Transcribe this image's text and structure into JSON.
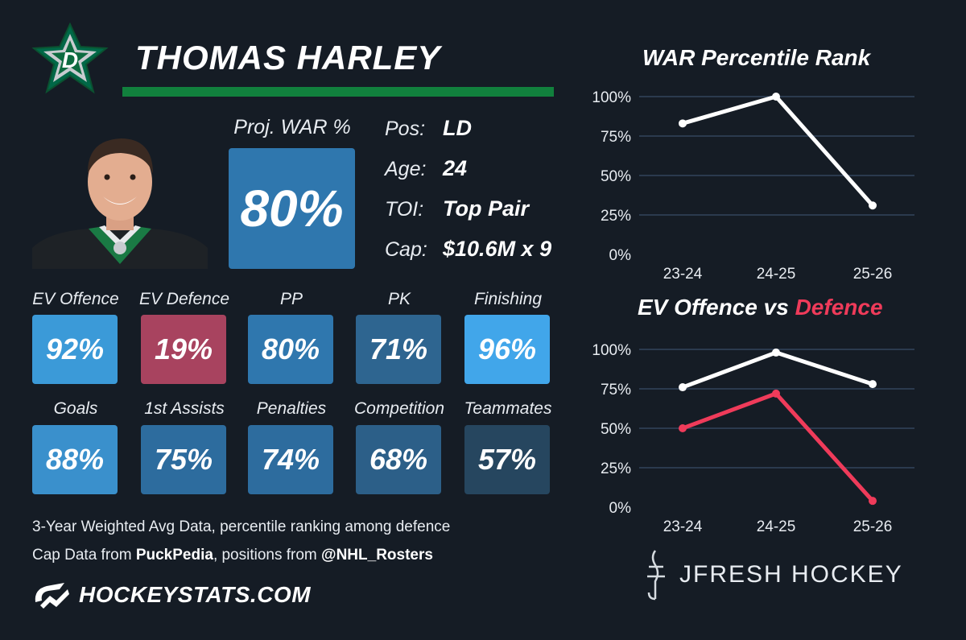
{
  "player": {
    "name": "THOMAS HARLEY",
    "proj_war_label": "Proj. WAR %",
    "proj_war_value": "80%",
    "team_logo": "dallas-stars-star-logo"
  },
  "info": [
    {
      "label": "Pos:",
      "value": "LD"
    },
    {
      "label": "Age:",
      "value": "24"
    },
    {
      "label": "TOI:",
      "value": "Top Pair"
    },
    {
      "label": "Cap:",
      "value": "$10.6M x 9"
    }
  ],
  "metrics": [
    {
      "label": "EV Offence",
      "value": "92%",
      "color": "#3b9ad8"
    },
    {
      "label": "EV Defence",
      "value": "19%",
      "color": "#a8435f"
    },
    {
      "label": "PP",
      "value": "80%",
      "color": "#2f77ae"
    },
    {
      "label": "PK",
      "value": "71%",
      "color": "#2e6590"
    },
    {
      "label": "Finishing",
      "value": "96%",
      "color": "#41a6ea"
    },
    {
      "label": "Goals",
      "value": "88%",
      "color": "#3a90cc"
    },
    {
      "label": "1st Assists",
      "value": "75%",
      "color": "#2d6c9e"
    },
    {
      "label": "Penalties",
      "value": "74%",
      "color": "#2d6c9e"
    },
    {
      "label": "Competition",
      "value": "68%",
      "color": "#2c5f88"
    },
    {
      "label": "Teammates",
      "value": "57%",
      "color": "#26465f"
    }
  ],
  "footnotes": {
    "line1": "3-Year Weighted Avg Data, percentile ranking among defence",
    "line2_prefix": "Cap Data from ",
    "line2_source": "PuckPedia",
    "line2_mid": ", positions from ",
    "line2_handle": "@NHL_Rosters"
  },
  "branding": {
    "hockeystats": "HOCKEYSTATS.COM",
    "jfresh": "JFRESH HOCKEY"
  },
  "chart_data": [
    {
      "type": "line",
      "title": "WAR Percentile Rank",
      "xlabel": "",
      "ylabel": "",
      "categories": [
        "23-24",
        "24-25",
        "25-26"
      ],
      "yticks": [
        "0%",
        "25%",
        "50%",
        "75%",
        "100%"
      ],
      "ylim": [
        0,
        100
      ],
      "grid": true,
      "series": [
        {
          "values": [
            83,
            100,
            31
          ],
          "color": "#ffffff"
        }
      ]
    },
    {
      "type": "line",
      "title": "EV Offence vs Defence",
      "title_parts": {
        "a": "EV Offence vs ",
        "b": "Defence"
      },
      "xlabel": "",
      "ylabel": "",
      "categories": [
        "23-24",
        "24-25",
        "25-26"
      ],
      "yticks": [
        "0%",
        "25%",
        "50%",
        "75%",
        "100%"
      ],
      "ylim": [
        0,
        100
      ],
      "grid": true,
      "series": [
        {
          "values": [
            76,
            98,
            78
          ],
          "color": "#ffffff"
        },
        {
          "values": [
            50,
            72,
            4
          ],
          "color": "#ef3b5a"
        }
      ]
    }
  ]
}
